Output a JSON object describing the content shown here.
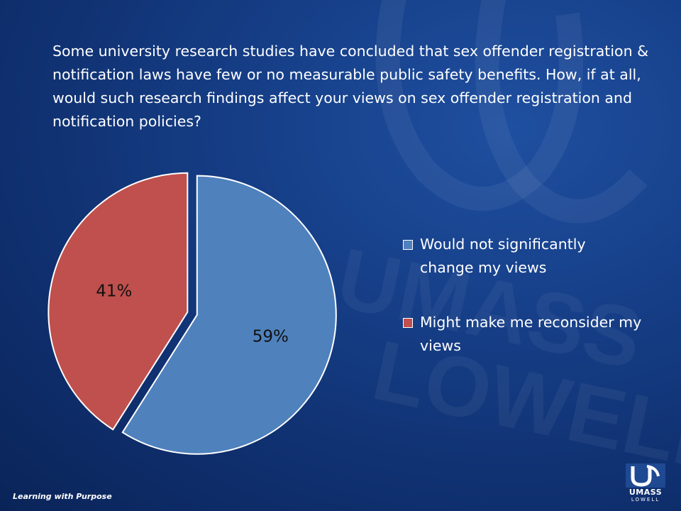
{
  "slide": {
    "question": "Some university research studies have concluded that sex offender registration & notification laws have few or no measurable public safety benefits. How, if at all, would such research findings affect your views on sex offender registration and notification policies?",
    "footer": "Learning with Purpose",
    "logo": {
      "top": "UMASS",
      "bottom": "LOWELL"
    }
  },
  "chart_data": {
    "type": "pie",
    "title": "",
    "slices": [
      {
        "label": "Would not significantly change my views",
        "value": 59,
        "display": "59%",
        "color": "#4f81bd"
      },
      {
        "label": "Might make me reconsider my views",
        "value": 41,
        "display": "41%",
        "color": "#c0504d"
      }
    ],
    "legend_position": "right"
  }
}
